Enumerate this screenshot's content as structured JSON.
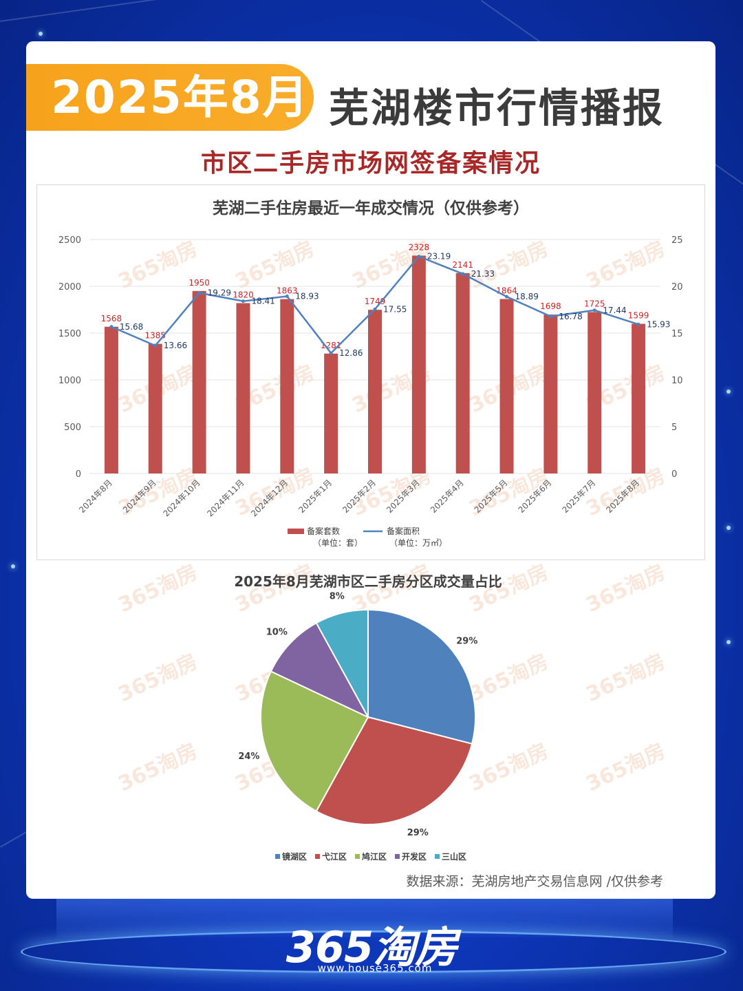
{
  "header": {
    "badge": "2025年8月",
    "headline": "芜湖楼市行情播报",
    "subtitle": "市区二手房市场网签备案情况"
  },
  "chart_data": [
    {
      "type": "bar",
      "title": "芜湖二手住房最近一年成交情况（仅供参考）",
      "categories": [
        "2024年8月",
        "2024年9月",
        "2024年10月",
        "2024年11月",
        "2024年12月",
        "2025年1月",
        "2025年2月",
        "2025年3月",
        "2025年4月",
        "2025年5月",
        "2025年6月",
        "2025年7月",
        "2025年8月"
      ],
      "series": [
        {
          "name": "备案套数",
          "name_note": "（单位：套）",
          "type": "bar",
          "axis": "left",
          "color": "#c0504d",
          "values": [
            1568,
            1385,
            1950,
            1820,
            1863,
            1281,
            1749,
            2328,
            2141,
            1864,
            1698,
            1725,
            1599
          ]
        },
        {
          "name": "备案面积",
          "name_note": "（单位：万㎡）",
          "type": "line",
          "axis": "right",
          "color": "#4f81bd",
          "values": [
            15.68,
            13.66,
            19.29,
            18.41,
            18.93,
            12.86,
            17.55,
            23.19,
            21.33,
            18.89,
            16.78,
            17.44,
            15.93
          ]
        }
      ],
      "ylim_left": [
        0,
        2500
      ],
      "yticks_left": [
        0,
        500,
        1000,
        1500,
        2000,
        2500
      ],
      "ylim_right": [
        0,
        25
      ],
      "yticks_right": [
        0,
        5,
        10,
        15,
        20,
        25
      ],
      "grid": true,
      "legend": "bottom"
    },
    {
      "type": "pie",
      "title": "2025年8月芜湖市区二手房分区成交量占比",
      "slices": [
        {
          "label": "镜湖区",
          "value": 29,
          "text": "29%",
          "color": "#4f81bd"
        },
        {
          "label": "弋江区",
          "value": 29,
          "text": "29%",
          "color": "#c0504d"
        },
        {
          "label": "鸠江区",
          "value": 24,
          "text": "24%",
          "color": "#9bbb59"
        },
        {
          "label": "开发区",
          "value": 10,
          "text": "10%",
          "color": "#8064a2"
        },
        {
          "label": "三山区",
          "value": 8,
          "text": "8%",
          "color": "#4bacc6"
        }
      ],
      "legend": "bottom"
    }
  ],
  "watermark": "365淘房",
  "source": "数据来源：芜湖房地产交易信息网 /仅供参考",
  "footer": {
    "logo": "365淘房",
    "url": "www.house365.com"
  }
}
